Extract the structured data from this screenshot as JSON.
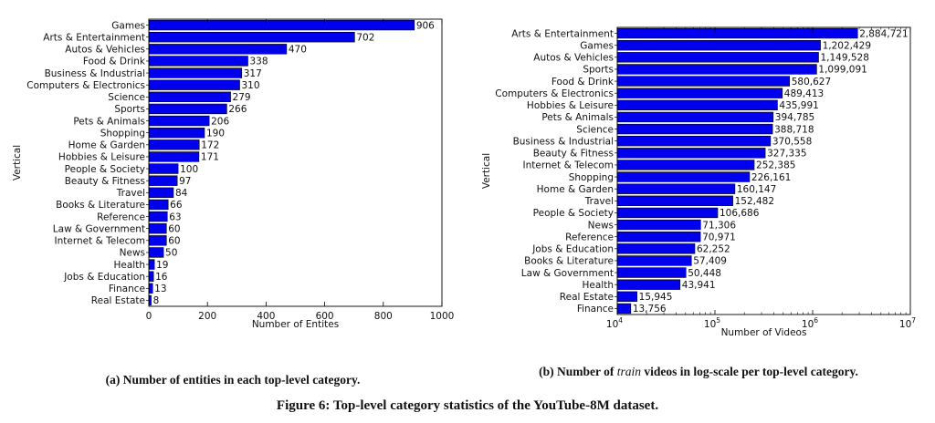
{
  "chart_data": [
    {
      "type": "bar",
      "orientation": "horizontal",
      "categories": [
        "Games",
        "Arts & Entertainment",
        "Autos & Vehicles",
        "Food & Drink",
        "Business & Industrial",
        "Computers & Electronics",
        "Science",
        "Sports",
        "Pets & Animals",
        "Shopping",
        "Home & Garden",
        "Hobbies & Leisure",
        "People & Society",
        "Beauty & Fitness",
        "Travel",
        "Books & Literature",
        "Reference",
        "Law & Government",
        "Internet & Telecom",
        "News",
        "Health",
        "Jobs & Education",
        "Finance",
        "Real Estate"
      ],
      "values": [
        906,
        702,
        470,
        338,
        317,
        310,
        279,
        266,
        206,
        190,
        172,
        171,
        100,
        97,
        84,
        66,
        63,
        60,
        60,
        50,
        19,
        16,
        13,
        8
      ],
      "labels": [
        "906",
        "702",
        "470",
        "338",
        "317",
        "310",
        "279",
        "266",
        "206",
        "190",
        "172",
        "171",
        "100",
        "97",
        "84",
        "66",
        "63",
        "60",
        "60",
        "50",
        "19",
        "16",
        "13",
        "8"
      ],
      "xlabel": "Number of Entites",
      "ylabel": "Vertical",
      "xlim": [
        0,
        1000
      ],
      "xticks": [
        "0",
        "200",
        "400",
        "600",
        "800",
        "1000"
      ],
      "xscale": "linear",
      "bar_color": "#0000ee",
      "caption_prefix": "(a) Number of entities in each top-level category.",
      "caption_italic": "",
      "caption_suffix": ""
    },
    {
      "type": "bar",
      "orientation": "horizontal",
      "categories": [
        "Arts & Entertainment",
        "Games",
        "Autos & Vehicles",
        "Sports",
        "Food & Drink",
        "Computers & Electronics",
        "Hobbies & Leisure",
        "Pets & Animals",
        "Science",
        "Business & Industrial",
        "Beauty & Fitness",
        "Internet & Telecom",
        "Shopping",
        "Home & Garden",
        "Travel",
        "People & Society",
        "News",
        "Reference",
        "Jobs & Education",
        "Books & Literature",
        "Law & Government",
        "Health",
        "Real Estate",
        "Finance"
      ],
      "values": [
        2884721,
        1202429,
        1149528,
        1099091,
        580627,
        489413,
        435991,
        394785,
        388718,
        370558,
        327335,
        252385,
        226161,
        160147,
        152482,
        106686,
        71306,
        70971,
        62252,
        57409,
        50448,
        43941,
        15945,
        13756
      ],
      "labels": [
        "2,884,721",
        "1,202,429",
        "1,149,528",
        "1,099,091",
        "580,627",
        "489,413",
        "435,991",
        "394,785",
        "388,718",
        "370,558",
        "327,335",
        "252,385",
        "226,161",
        "160,147",
        "152,482",
        "106,686",
        "71,306",
        "70,971",
        "62,252",
        "57,409",
        "50,448",
        "43,941",
        "15,945",
        "13,756"
      ],
      "xlabel": "Number of Videos",
      "ylabel": "Vertical",
      "xlim": [
        10000,
        10000000
      ],
      "xscale": "log",
      "xticks_exp": [
        "4",
        "5",
        "6",
        "7"
      ],
      "bar_color": "#0000ee",
      "caption_prefix": "(b) Number of ",
      "caption_italic": "train",
      "caption_suffix": " videos in log-scale per top-level category."
    }
  ],
  "tick_base": "10",
  "figure_caption": "Figure 6: Top-level category statistics of the YouTube-8M dataset."
}
